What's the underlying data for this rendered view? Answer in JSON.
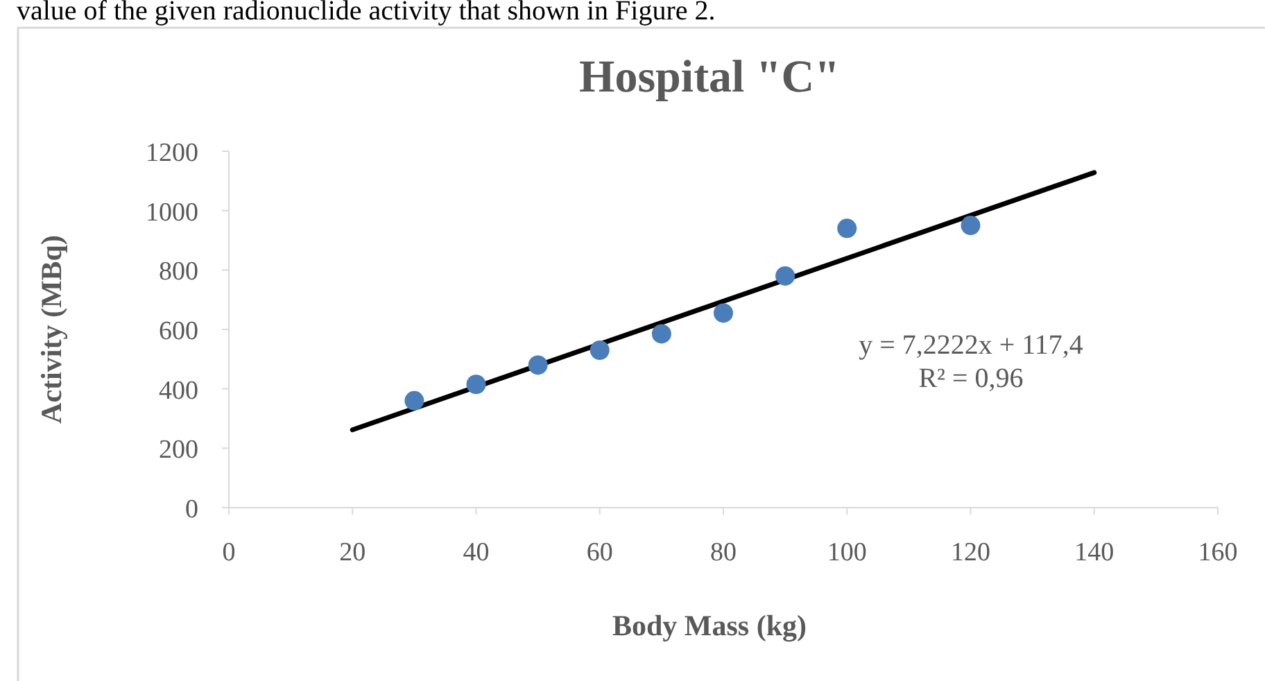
{
  "chart_data": {
    "type": "scatter",
    "title": "Hospital \"C\"",
    "xlabel": "Body Mass (kg)",
    "ylabel": "Activity (MBq)",
    "annotations": [
      "value of the given radionuclide activity that shown in Figure 2.",
      "y = 7,2222x + 117,4\nR² = 0,96"
    ],
    "series": [
      {
        "color": "#4a7ebb",
        "marker": "circle",
        "x": [
          30,
          40,
          50,
          60,
          70,
          80,
          90,
          100,
          120
        ],
        "values": [
          360,
          415,
          480,
          530,
          585,
          655,
          780,
          940,
          950
        ]
      },
      {
        "type": "line",
        "color": "#000000",
        "x": [
          20,
          140
        ],
        "values": [
          262,
          1128
        ]
      }
    ],
    "xlim": [
      0,
      160
    ],
    "xticks": [
      0,
      20,
      40,
      60,
      80,
      100,
      120,
      140,
      160
    ],
    "ylim": [
      0,
      1200
    ],
    "yticks": [
      0,
      200,
      400,
      600,
      800,
      1000,
      1200
    ]
  }
}
